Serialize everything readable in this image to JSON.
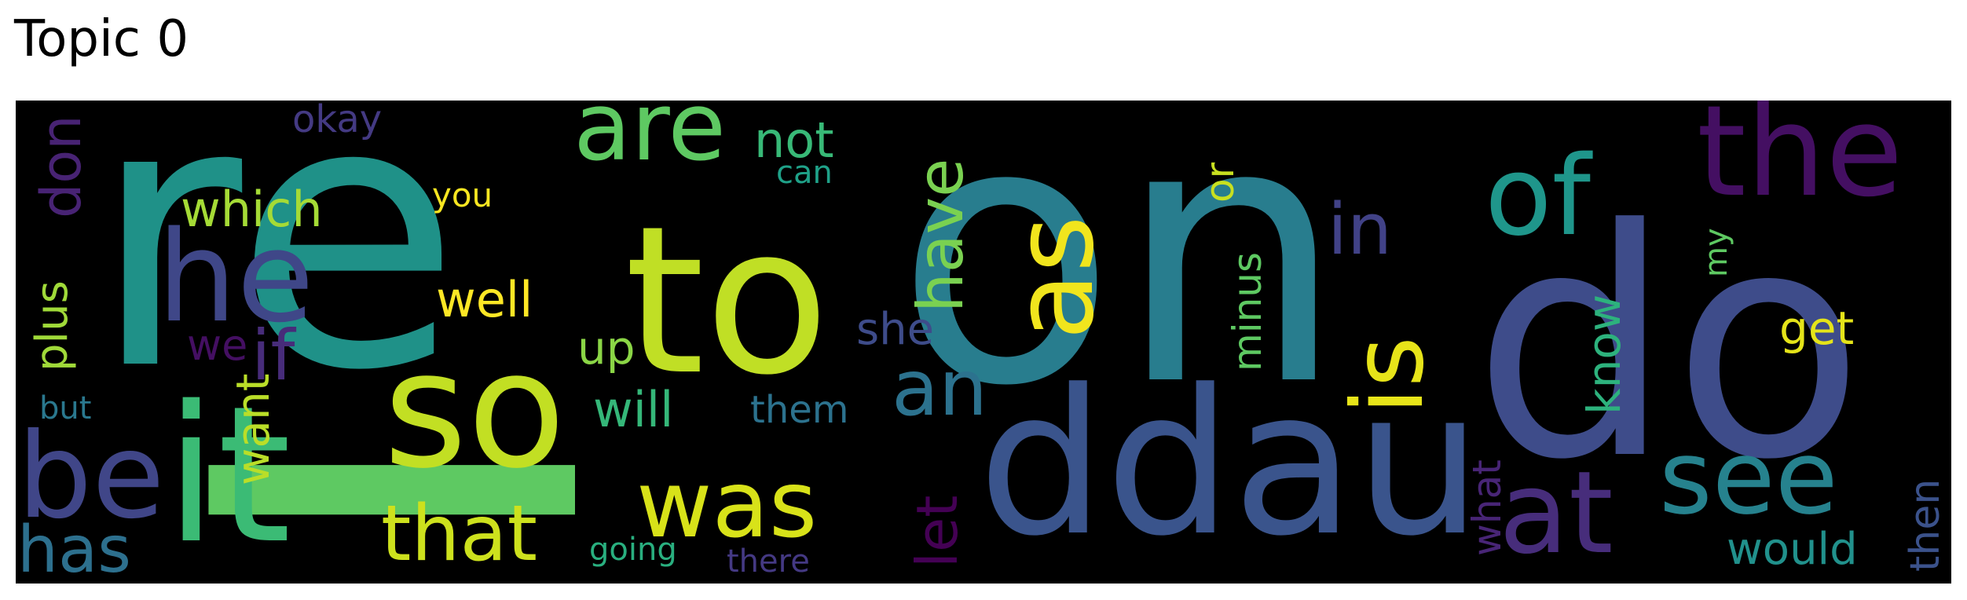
{
  "title": "Topic 0",
  "words": [
    {
      "text": "re",
      "color": "#1f9188"
    },
    {
      "text": "I",
      "color": "#5ec962"
    },
    {
      "text": "to",
      "color": "#c0df25"
    },
    {
      "text": "on",
      "color": "#287d8e"
    },
    {
      "text": "do",
      "color": "#3e4c8a"
    },
    {
      "text": "ddau",
      "color": "#3a548c"
    },
    {
      "text": "so",
      "color": "#c2df23"
    },
    {
      "text": "it",
      "color": "#3bbb75"
    },
    {
      "text": "he",
      "color": "#3f4788"
    },
    {
      "text": "be",
      "color": "#404688"
    },
    {
      "text": "the",
      "color": "#440f62"
    },
    {
      "text": "of",
      "color": "#1f968b"
    },
    {
      "text": "are",
      "color": "#5ec962"
    },
    {
      "text": "was",
      "color": "#d8e219"
    },
    {
      "text": "as",
      "color": "#f1e51d"
    },
    {
      "text": "at",
      "color": "#472d7b"
    },
    {
      "text": "see",
      "color": "#26828e"
    },
    {
      "text": "is",
      "color": "#e7e419"
    },
    {
      "text": "that",
      "color": "#cde11d"
    },
    {
      "text": "an",
      "color": "#2c728e"
    },
    {
      "text": "have",
      "color": "#7ad151"
    },
    {
      "text": "in",
      "color": "#414287"
    },
    {
      "text": "let",
      "color": "#440154"
    },
    {
      "text": "has",
      "color": "#2d708e"
    },
    {
      "text": "which",
      "color": "#a5db36"
    },
    {
      "text": "if",
      "color": "#472c7a"
    },
    {
      "text": "not",
      "color": "#38b977"
    },
    {
      "text": "don",
      "color": "#482374"
    },
    {
      "text": "plus",
      "color": "#a0da39"
    },
    {
      "text": "well",
      "color": "#fde725"
    },
    {
      "text": "will",
      "color": "#35b779"
    },
    {
      "text": "up",
      "color": "#8bd646"
    },
    {
      "text": "want",
      "color": "#bade28"
    },
    {
      "text": "would",
      "color": "#21918c"
    },
    {
      "text": "then",
      "color": "#3b528b"
    },
    {
      "text": "know",
      "color": "#2db27d"
    },
    {
      "text": "get",
      "color": "#e5e419"
    },
    {
      "text": "what",
      "color": "#482576"
    },
    {
      "text": "minus",
      "color": "#5ec962"
    },
    {
      "text": "or",
      "color": "#c8e020"
    },
    {
      "text": "she",
      "color": "#3e4c8a"
    },
    {
      "text": "them",
      "color": "#2c728e"
    },
    {
      "text": "we",
      "color": "#440f62"
    },
    {
      "text": "okay",
      "color": "#443a83"
    },
    {
      "text": "you",
      "color": "#f8e621"
    },
    {
      "text": "can",
      "color": "#1fa188"
    },
    {
      "text": "my",
      "color": "#5ec962"
    },
    {
      "text": "but",
      "color": "#2a788e"
    },
    {
      "text": "going",
      "color": "#29af7f"
    },
    {
      "text": "there",
      "color": "#443983"
    }
  ]
}
